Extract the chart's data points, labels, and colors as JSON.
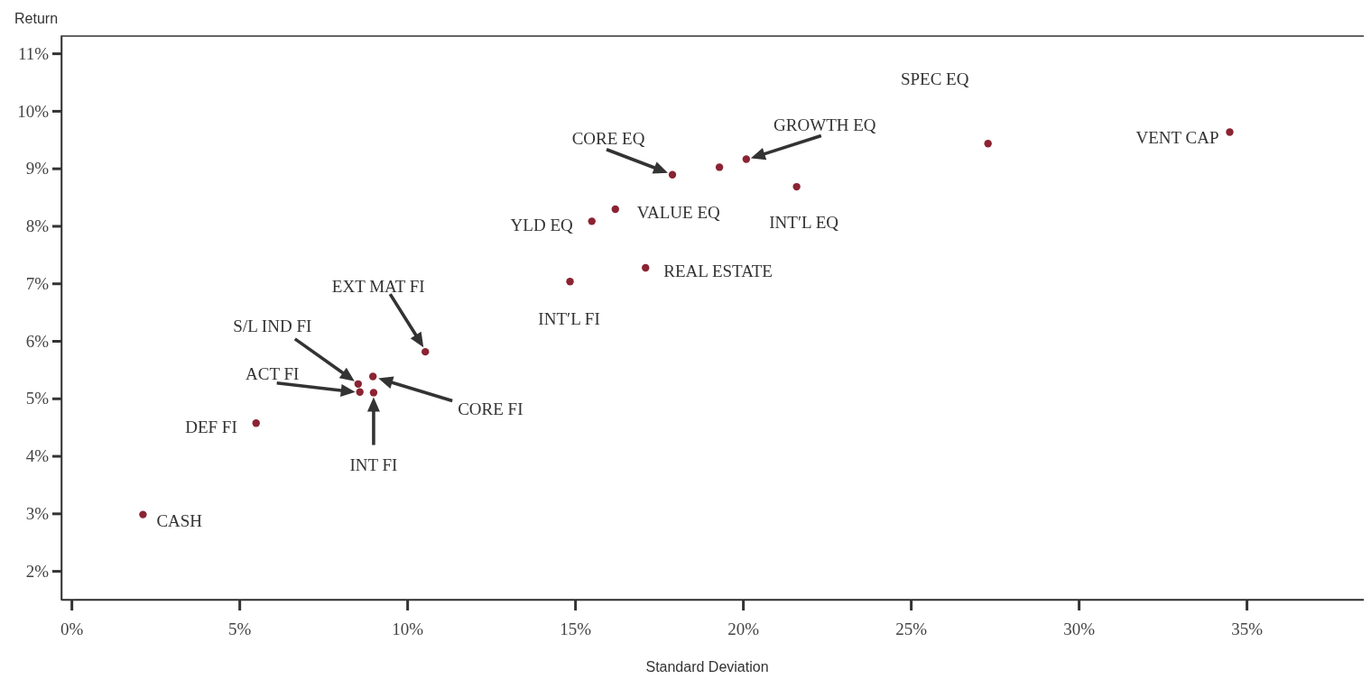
{
  "chart_data": {
    "type": "scatter",
    "xlabel": "Standard Deviation",
    "ylabel": "Return",
    "x": [
      2.13,
      5.5,
      8.54,
      8.59,
      8.98,
      9.0,
      10.54,
      14.85,
      15.5,
      16.2,
      17.1,
      17.9,
      19.3,
      20.1,
      21.6,
      27.3,
      34.5
    ],
    "series": [
      {
        "color": "#8b2332",
        "values": [
          2.98,
          4.57,
          5.25,
          5.11,
          5.38,
          5.1,
          5.81,
          7.03,
          8.08,
          8.29,
          7.27,
          8.89,
          9.02,
          9.16,
          8.68,
          9.43,
          9.63
        ]
      }
    ],
    "marker": "circle",
    "xlim": [
      -0.3,
      38.6
    ],
    "ylim": [
      1.5,
      11.3
    ],
    "xticks": [
      {
        "value": 0,
        "label": "0%"
      },
      {
        "value": 5,
        "label": "5%"
      },
      {
        "value": 10,
        "label": "10%"
      },
      {
        "value": 15,
        "label": "15%"
      },
      {
        "value": 20,
        "label": "20%"
      },
      {
        "value": 25,
        "label": "25%"
      },
      {
        "value": 30,
        "label": "30%"
      },
      {
        "value": 35,
        "label": "35%"
      }
    ],
    "yticks": [
      {
        "value": 2,
        "label": "2%"
      },
      {
        "value": 3,
        "label": "3%"
      },
      {
        "value": 4,
        "label": "4%"
      },
      {
        "value": 5,
        "label": "5%"
      },
      {
        "value": 6,
        "label": "6%"
      },
      {
        "value": 7,
        "label": "7%"
      },
      {
        "value": 8,
        "label": "8%"
      },
      {
        "value": 9,
        "label": "9%"
      },
      {
        "value": 10,
        "label": "10%"
      },
      {
        "value": 11,
        "label": "11%"
      }
    ],
    "grid": false,
    "annotations": [
      {
        "text": "CASH",
        "x": 2.13,
        "y": 2.98
      },
      {
        "text": "DEF FI",
        "x": 5.5,
        "y": 4.57
      },
      "S/L IND FI",
      "ACT FI",
      "CORE FI",
      "INT FI",
      "EXT MAT FI",
      {
        "text": "INT′L FI",
        "x": 14.85,
        "y": 7.03
      },
      {
        "text": "YLD EQ",
        "x": 15.5,
        "y": 8.08
      },
      {
        "text": "VALUE EQ",
        "x": 16.2,
        "y": 8.29
      },
      {
        "text": "REAL ESTATE",
        "x": 17.1,
        "y": 7.27
      },
      {
        "text": "CORE EQ",
        "x": 17.9,
        "y": 8.89
      },
      {
        "text": "GROWTH EQ",
        "x": 20.1,
        "y": 9.16
      },
      {
        "text": "INT′L EQ",
        "x": 21.6,
        "y": 8.68
      },
      "SPEC EQ",
      {
        "text": "VENT CAP",
        "x": 34.5,
        "y": 9.63
      }
    ]
  }
}
